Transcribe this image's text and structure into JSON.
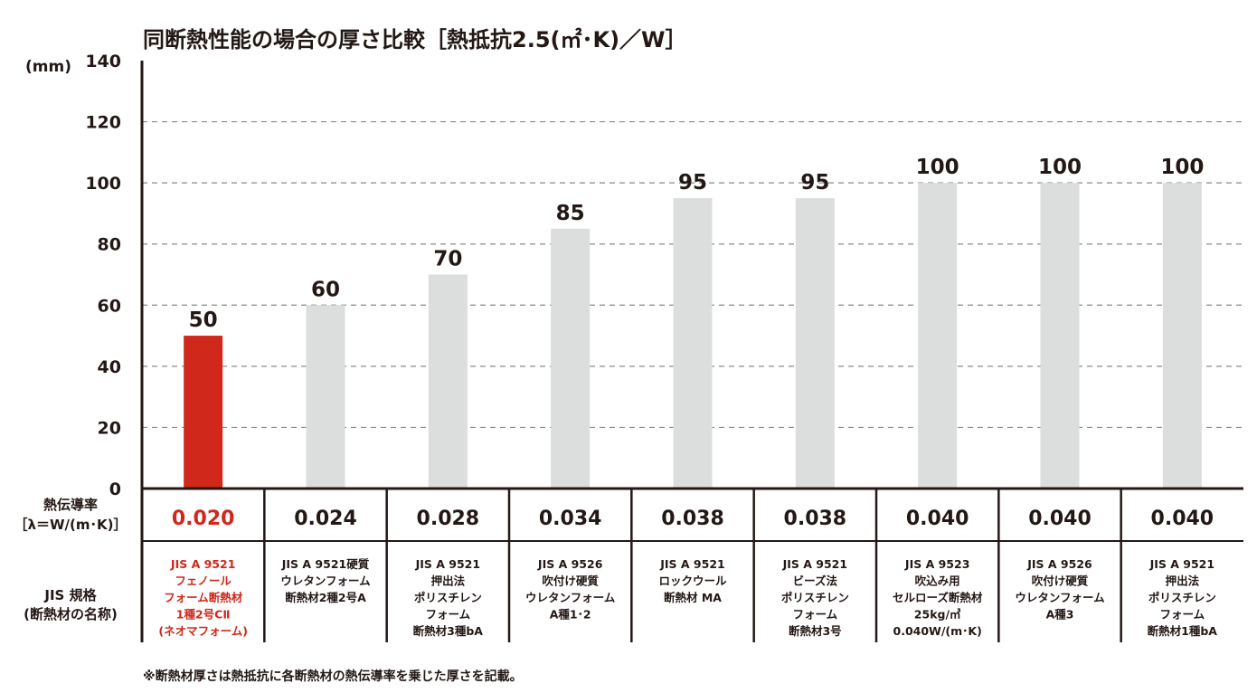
{
  "chart_data": {
    "type": "bar",
    "title": "同断熱性能の場合の厚さ比較［熱抵抗2.5(㎡･K)／W］",
    "ylabel": "(mm)",
    "ylim": [
      0,
      140
    ],
    "yticks": [
      0,
      20,
      40,
      60,
      80,
      100,
      120,
      140
    ],
    "grid": true,
    "value_labels": [
      "50",
      "60",
      "70",
      "85",
      "95",
      "95",
      "100",
      "100",
      "100"
    ],
    "values": [
      50,
      60,
      70,
      85,
      95,
      95,
      100,
      100,
      100
    ],
    "highlight_index": 0,
    "colors": {
      "highlight": "#d0281b",
      "bar": "#dcdddd",
      "text": "#231815",
      "grid": "#8a8a8a"
    },
    "conductivity_header": [
      "熱伝導率",
      "［λ＝W/(m･K)］"
    ],
    "conductivity": [
      "0.020",
      "0.024",
      "0.028",
      "0.034",
      "0.038",
      "0.038",
      "0.040",
      "0.040",
      "0.040"
    ],
    "jis_header": [
      "JIS 規格",
      "(断熱材の名称)"
    ],
    "categories": [
      [
        "JIS A 9521",
        "フェノール",
        "フォーム断熱材",
        "1種2号CⅡ",
        "(ネオマフォーム)"
      ],
      [
        "JIS A 9521硬質",
        "ウレタンフォーム",
        "断熱材2種2号A"
      ],
      [
        "JIS A 9521",
        "押出法",
        "ポリスチレン",
        "フォーム",
        "断熱材3種bA"
      ],
      [
        "JIS A 9526",
        "吹付け硬質",
        "ウレタンフォーム",
        "A種1･2"
      ],
      [
        "JIS A 9521",
        "ロックウール",
        "断熱材 MA"
      ],
      [
        "JIS A 9521",
        "ビーズ法",
        "ポリスチレン",
        "フォーム",
        "断熱材3号"
      ],
      [
        "JIS A 9523",
        "吹込み用",
        "セルローズ断熱材",
        "25kg/㎥",
        "0.040W/(m･K)"
      ],
      [
        "JIS A 9526",
        "吹付け硬質",
        "ウレタンフォーム",
        "A種3"
      ],
      [
        "JIS A 9521",
        "押出法",
        "ポリスチレン",
        "フォーム",
        "断熱材1種bA"
      ]
    ],
    "note": "※断熱材厚さは熱抵抗に各断熱材の熱伝導率を乗じた厚さを記載。"
  }
}
